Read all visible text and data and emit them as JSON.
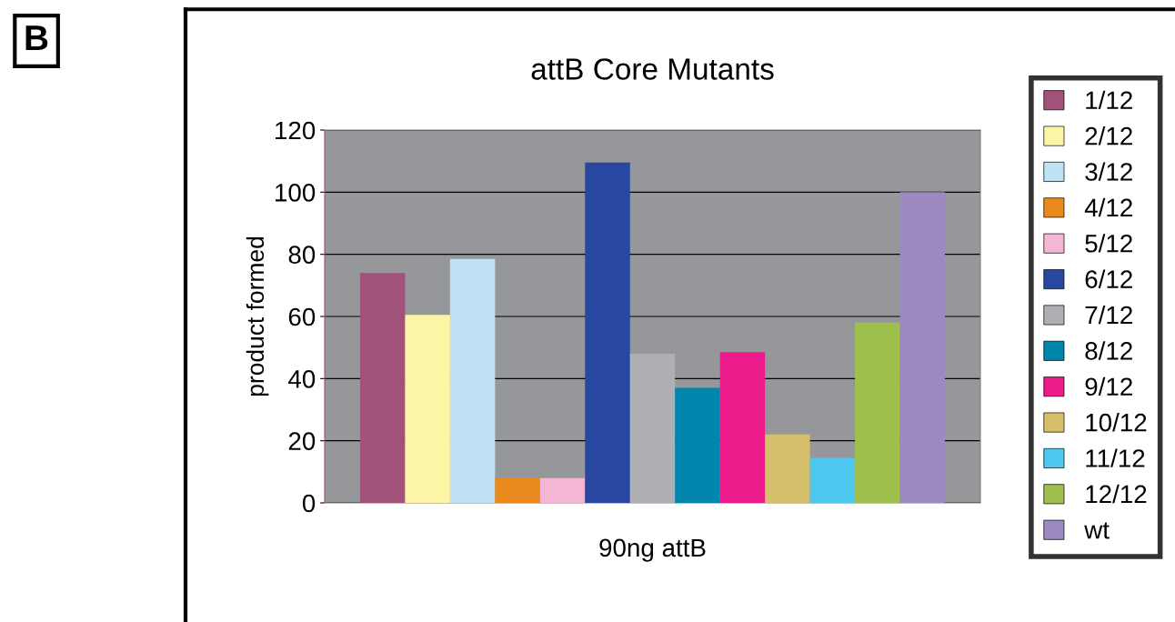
{
  "chart_data": {
    "type": "bar",
    "title": "attB Core Mutants",
    "ylabel": "product formed",
    "categories": [
      "90ng attB"
    ],
    "series": [
      {
        "name": "1/12",
        "color": "#a0527a",
        "values": [
          74
        ]
      },
      {
        "name": "2/12",
        "color": "#fdf5a6",
        "values": [
          60.5
        ]
      },
      {
        "name": "3/12",
        "color": "#bfe3f5",
        "values": [
          78.5
        ]
      },
      {
        "name": "4/12",
        "color": "#e88a1e",
        "values": [
          8
        ]
      },
      {
        "name": "5/12",
        "color": "#f4b6d2",
        "values": [
          8
        ]
      },
      {
        "name": "6/12",
        "color": "#2747a0",
        "values": [
          109.5
        ]
      },
      {
        "name": "7/12",
        "color": "#aeafb3",
        "values": [
          48
        ]
      },
      {
        "name": "8/12",
        "color": "#0085ad",
        "values": [
          37
        ]
      },
      {
        "name": "9/12",
        "color": "#ec1c8c",
        "values": [
          48.5
        ]
      },
      {
        "name": "10/12",
        "color": "#d6bf6a",
        "values": [
          22
        ]
      },
      {
        "name": "11/12",
        "color": "#4ec8f0",
        "values": [
          14.5
        ]
      },
      {
        "name": "12/12",
        "color": "#9fc04c",
        "values": [
          58
        ]
      },
      {
        "name": "wt",
        "color": "#9c8ac0",
        "values": [
          100
        ]
      }
    ],
    "ylim": [
      0,
      120
    ],
    "yticks": [
      0,
      20,
      40,
      60,
      80,
      100,
      120
    ],
    "grid": "y",
    "legend": "right",
    "annotations": [
      "B"
    ]
  }
}
